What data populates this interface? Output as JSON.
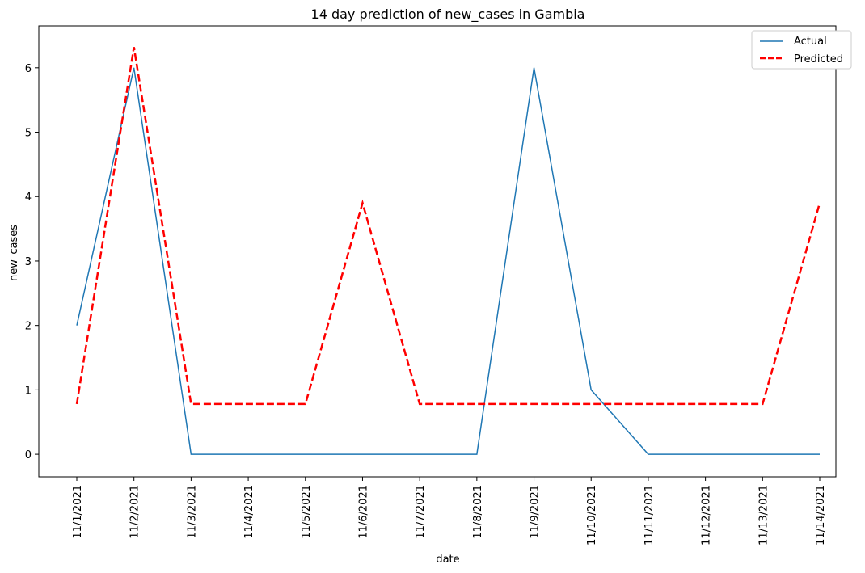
{
  "chart_data": {
    "type": "line",
    "title": "14 day prediction of new_cases in Gambia",
    "xlabel": "date",
    "ylabel": "new_cases",
    "categories": [
      "11/1/2021",
      "11/2/2021",
      "11/3/2021",
      "11/4/2021",
      "11/5/2021",
      "11/6/2021",
      "11/7/2021",
      "11/8/2021",
      "11/9/2021",
      "11/10/2021",
      "11/11/2021",
      "11/12/2021",
      "11/13/2021",
      "11/14/2021"
    ],
    "ylim": [
      -0.35,
      6.65
    ],
    "yticks": [
      0,
      1,
      2,
      3,
      4,
      5,
      6
    ],
    "grid": false,
    "legend_position": "top-right",
    "series": [
      {
        "name": "Actual",
        "color": "#1f77b4",
        "style": "solid",
        "values": [
          2,
          6,
          0,
          0,
          0,
          0,
          0,
          0,
          6,
          1,
          0,
          0,
          0,
          0
        ]
      },
      {
        "name": "Predicted",
        "color": "#ff0000",
        "style": "dashed",
        "values": [
          0.78,
          6.32,
          0.78,
          0.78,
          0.78,
          3.9,
          0.78,
          0.78,
          0.78,
          0.78,
          0.78,
          0.78,
          0.78,
          3.9
        ]
      }
    ]
  }
}
